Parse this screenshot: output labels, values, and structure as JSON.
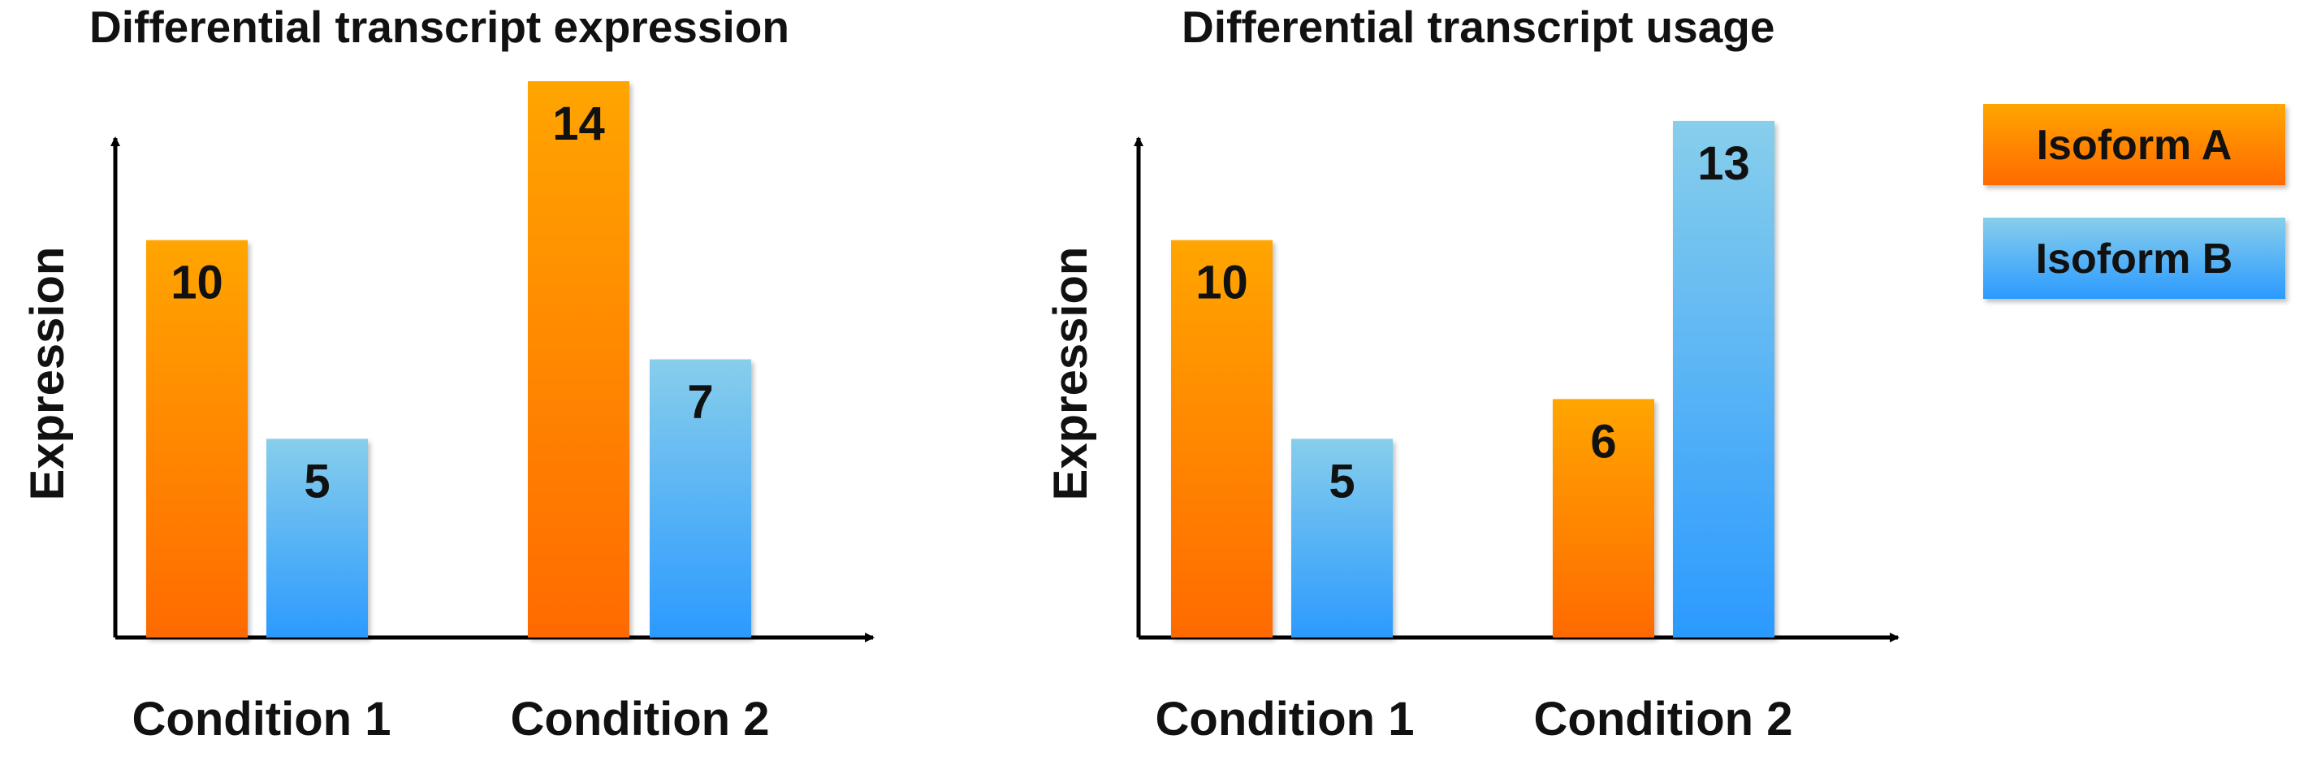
{
  "colors": {
    "isoform_a_top": "#ffa500",
    "isoform_a_bottom": "#ff6a00",
    "isoform_b_top": "#87ceeb",
    "isoform_b_bottom": "#2b9aff",
    "axis": "#000000",
    "text": "#111111"
  },
  "legend": {
    "items": [
      {
        "label": "Isoform A",
        "color": "isoform-a"
      },
      {
        "label": "Isoform B",
        "color": "isoform-b"
      }
    ]
  },
  "chart_data": [
    {
      "type": "bar",
      "title": "Differential transcript expression",
      "xlabel": "",
      "ylabel": "Expression",
      "categories": [
        "Condition 1",
        "Condition 2"
      ],
      "series": [
        {
          "name": "Isoform A",
          "values": [
            10,
            14
          ]
        },
        {
          "name": "Isoform B",
          "values": [
            5,
            7
          ]
        }
      ],
      "ylim": [
        0,
        14
      ],
      "grid": false,
      "legend": "right"
    },
    {
      "type": "bar",
      "title": "Differential transcript usage",
      "xlabel": "",
      "ylabel": "Expression",
      "categories": [
        "Condition 1",
        "Condition 2"
      ],
      "series": [
        {
          "name": "Isoform A",
          "values": [
            10,
            6
          ]
        },
        {
          "name": "Isoform B",
          "values": [
            5,
            13
          ]
        }
      ],
      "ylim": [
        0,
        14
      ],
      "grid": false,
      "legend": "right"
    }
  ]
}
